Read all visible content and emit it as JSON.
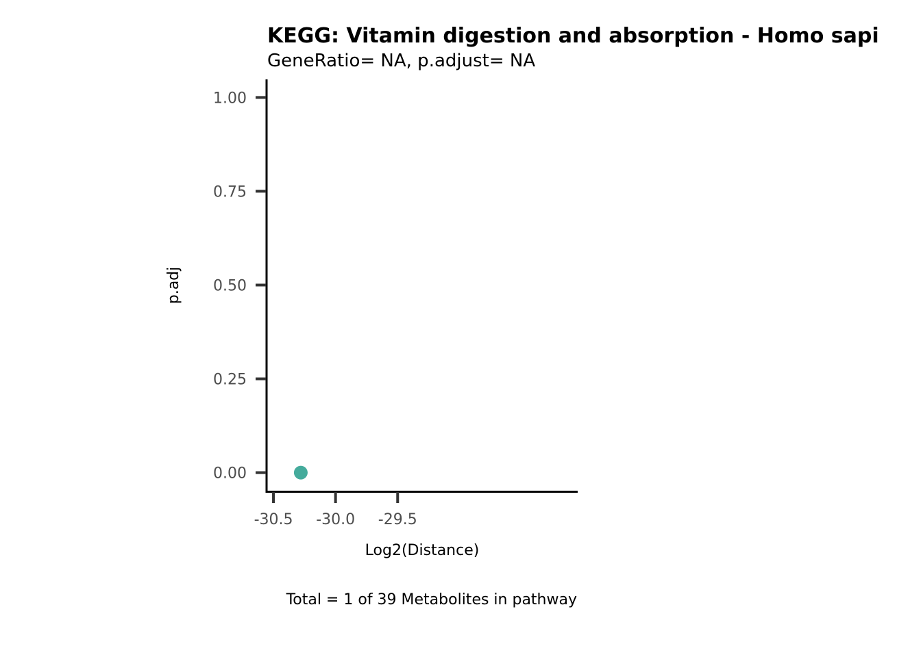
{
  "chart_data": {
    "type": "scatter",
    "title": "KEGG: Vitamin digestion and absorption - Homo sapi",
    "subtitle": "GeneRatio= NA, p.adjust= NA",
    "xlabel": "Log2(Distance)",
    "ylabel": "p.adj",
    "caption": "Total = 1 of 39 Metabolites in pathway",
    "xlim": [
      -30.55,
      -28.05
    ],
    "ylim": [
      -0.05,
      1.05
    ],
    "x_ticks": [
      -30.5,
      -30.0,
      -29.5
    ],
    "x_tick_labels": [
      "-30.5",
      "-30.0",
      "-29.5"
    ],
    "y_ticks": [
      0.0,
      0.25,
      0.5,
      0.75,
      1.0
    ],
    "y_tick_labels": [
      "0.00",
      "0.25",
      "0.50",
      "0.75",
      "1.00"
    ],
    "grid": false,
    "series": [
      {
        "points": [
          {
            "x": -30.28,
            "y": 0.0
          }
        ],
        "color": "#45ab9c"
      }
    ]
  }
}
